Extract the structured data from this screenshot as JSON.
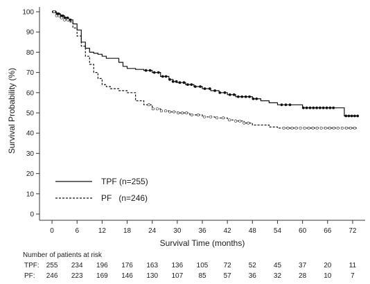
{
  "chart_data": {
    "type": "line",
    "subtype": "kaplan-meier",
    "title": "",
    "xlabel": "Survival Time (months)",
    "ylabel": "Survival Probability (%)",
    "xlim": [
      -3,
      75
    ],
    "ylim": [
      0,
      100
    ],
    "xticks": [
      0,
      6,
      12,
      18,
      24,
      30,
      36,
      42,
      48,
      54,
      60,
      66,
      72
    ],
    "yticks": [
      0,
      10,
      20,
      30,
      40,
      50,
      60,
      70,
      80,
      90,
      100
    ],
    "grid": false,
    "legend_position": "bottom-left",
    "series": [
      {
        "name": "TPF",
        "legend_label": "TPF (n=255)",
        "line_style": "solid",
        "color": "#111111",
        "x": [
          0,
          1,
          2,
          3,
          4,
          5,
          6,
          7,
          8,
          9,
          10,
          11,
          12,
          13,
          14,
          15,
          16,
          17,
          18,
          20,
          22,
          24,
          26,
          28,
          29,
          30,
          32,
          34,
          36,
          38,
          40,
          42,
          44,
          46,
          48,
          50,
          52,
          54,
          56,
          58,
          60,
          62,
          64,
          66,
          68,
          69.5,
          70,
          73
        ],
        "y": [
          100,
          99,
          98,
          97,
          96,
          94,
          91,
          85,
          82,
          80,
          79.5,
          79,
          78,
          77,
          77,
          77,
          75,
          73,
          72,
          71.5,
          71,
          70,
          68,
          66.5,
          65.5,
          65,
          64,
          63,
          62,
          61,
          60,
          59,
          58,
          58,
          57,
          56,
          55,
          54,
          54,
          54,
          52.5,
          52.5,
          52.5,
          52.5,
          52.5,
          52.5,
          48.5,
          48.5
        ],
        "censor_x": [
          0.3,
          0.7,
          1.2,
          1.6,
          2.1,
          2.6,
          3.1,
          3.7,
          4.4,
          22.5,
          23.5,
          24.5,
          25.5,
          26.5,
          27.3,
          28.2,
          29.0,
          29.8,
          30.6,
          31.6,
          32.5,
          33.4,
          34.3,
          35.5,
          36.6,
          37.8,
          39.0,
          40.2,
          41.4,
          42.6,
          43.6,
          44.6,
          45.5,
          46.4,
          47.3,
          48.2,
          49.0,
          55.0,
          56.0,
          57.0,
          60.2,
          61.0,
          61.8,
          62.6,
          63.4,
          64.2,
          65.0,
          65.8,
          66.6,
          67.4,
          70.4,
          71.1,
          71.8,
          72.5,
          73.2
        ]
      },
      {
        "name": "PF",
        "legend_label": "PF   (n=246)",
        "line_style": "dashed",
        "color": "#111111",
        "x": [
          0,
          1,
          2,
          3,
          4,
          5,
          6,
          7,
          8,
          9,
          10,
          11,
          12,
          13,
          14,
          16,
          18,
          20,
          22,
          24,
          26,
          28,
          30,
          33,
          36,
          39,
          42,
          44,
          46,
          48,
          50,
          52,
          54,
          56,
          58,
          60,
          62,
          64,
          66,
          68,
          70,
          73
        ],
        "y": [
          100,
          98,
          97,
          96,
          95,
          92,
          88,
          83,
          78,
          74,
          70,
          67,
          64,
          63,
          62,
          61,
          60,
          56,
          54,
          52,
          51,
          50.5,
          50,
          49,
          48,
          47.5,
          46.5,
          46,
          45,
          44,
          44,
          43,
          42.5,
          42.5,
          42.5,
          42.5,
          42.5,
          42.5,
          42.5,
          42.5,
          42.5,
          42.5
        ],
        "censor_x": [
          0.5,
          1.1,
          1.7,
          2.3,
          3.0,
          3.8,
          23.2,
          24.2,
          25.2,
          26.2,
          27.2,
          28.2,
          29.2,
          30.2,
          31.2,
          32.2,
          33.5,
          35.0,
          36.5,
          38.0,
          39.5,
          41.0,
          42.5,
          44.0,
          45.0,
          46.0,
          47.0,
          55.5,
          56.5,
          57.5,
          58.5,
          59.5,
          60.5,
          61.5,
          62.5,
          63.5,
          64.5,
          65.5,
          66.5,
          67.5,
          68.5,
          69.5,
          70.5,
          71.5,
          72.5
        ]
      }
    ],
    "risk_table": {
      "title": "Number of patients at risk",
      "times": [
        0,
        6,
        12,
        18,
        24,
        30,
        36,
        42,
        48,
        54,
        60,
        66,
        72
      ],
      "rows": [
        {
          "label": "TPF:",
          "values": [
            "255",
            "234",
            "196",
            "176",
            "163",
            "136",
            "105",
            "72",
            "52",
            "45",
            "37",
            "20",
            "11"
          ]
        },
        {
          "label": "PF:",
          "values": [
            "246",
            "223",
            "169",
            "146",
            "130",
            "107",
            "85",
            "57",
            "36",
            "32",
            "28",
            "10",
            "7"
          ]
        }
      ]
    }
  }
}
